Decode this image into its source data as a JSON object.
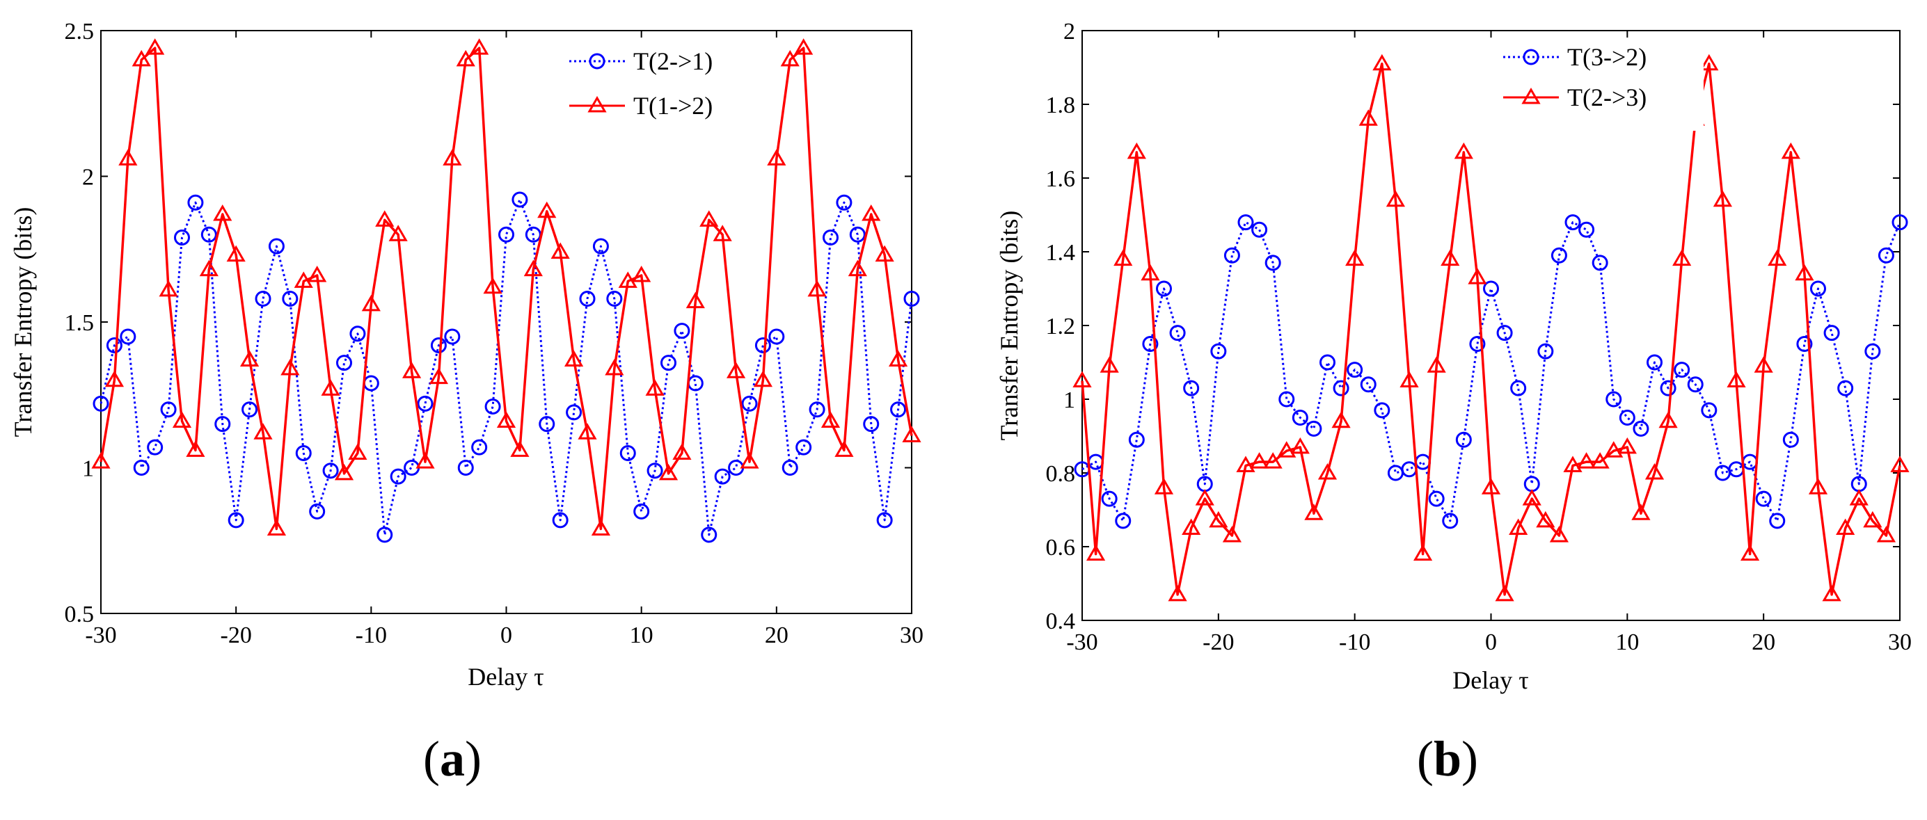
{
  "chart_data": [
    {
      "type": "line",
      "panel_label": {
        "open": "(",
        "letter": "a",
        "close": ")"
      },
      "title": "",
      "xlabel": "Delay τ",
      "ylabel": "Transfer Entropy (bits)",
      "xlim": [
        -30,
        30
      ],
      "ylim": [
        0.5,
        2.5
      ],
      "xticks": [
        -30,
        -20,
        -10,
        0,
        10,
        20,
        30
      ],
      "yticks": [
        0.5,
        1,
        1.5,
        2,
        2.5
      ],
      "xtick_labels": [
        "-30",
        "-20",
        "-10",
        "0",
        "10",
        "20",
        "30"
      ],
      "ytick_labels": [
        "0.5",
        "1",
        "1.5",
        "2",
        "2.5"
      ],
      "grid": false,
      "legend_position": "top-right",
      "series": [
        {
          "name": "T(2->1)",
          "color": "#0000ff",
          "line_style": "dotted",
          "marker": "circle",
          "x": [
            -30,
            -29,
            -28,
            -27,
            -26,
            -25,
            -24,
            -23,
            -22,
            -21,
            -20,
            -19,
            -18,
            -17,
            -16,
            -15,
            -14,
            -13,
            -12,
            -11,
            -10,
            -9,
            -8,
            -7,
            -6,
            -5,
            -4,
            -3,
            -2,
            -1,
            0,
            1,
            2,
            3,
            4,
            5,
            6,
            7,
            8,
            9,
            10,
            11,
            12,
            13,
            14,
            15,
            16,
            17,
            18,
            19,
            20,
            21,
            22,
            23,
            24,
            25,
            26,
            27,
            28,
            29,
            30
          ],
          "values": [
            1.22,
            1.42,
            1.45,
            1.0,
            1.07,
            1.2,
            1.79,
            1.91,
            1.8,
            1.15,
            0.82,
            1.2,
            1.58,
            1.76,
            1.58,
            1.05,
            0.85,
            0.99,
            1.36,
            1.46,
            1.29,
            0.77,
            0.97,
            1.0,
            1.22,
            1.42,
            1.45,
            1.0,
            1.07,
            1.21,
            1.8,
            1.92,
            1.8,
            1.15,
            0.82,
            1.19,
            1.58,
            1.76,
            1.58,
            1.05,
            0.85,
            0.99,
            1.36,
            1.47,
            1.29,
            0.77,
            0.97,
            1.0,
            1.22,
            1.42,
            1.45,
            1.0,
            1.07,
            1.2,
            1.79,
            1.91,
            1.8,
            1.15,
            0.82,
            1.2,
            1.58
          ]
        },
        {
          "name": "T(1->2)",
          "color": "#ff0000",
          "line_style": "solid",
          "marker": "triangle",
          "x": [
            -30,
            -29,
            -28,
            -27,
            -26,
            -25,
            -24,
            -23,
            -22,
            -21,
            -20,
            -19,
            -18,
            -17,
            -16,
            -15,
            -14,
            -13,
            -12,
            -11,
            -10,
            -9,
            -8,
            -7,
            -6,
            -5,
            -4,
            -3,
            -2,
            -1,
            0,
            1,
            2,
            3,
            4,
            5,
            6,
            7,
            8,
            9,
            10,
            11,
            12,
            13,
            14,
            15,
            16,
            17,
            18,
            19,
            20,
            21,
            22,
            23,
            24,
            25,
            26,
            27,
            28,
            29,
            30
          ],
          "values": [
            1.02,
            1.3,
            2.06,
            2.4,
            2.44,
            1.61,
            1.16,
            1.06,
            1.68,
            1.87,
            1.73,
            1.37,
            1.12,
            0.79,
            1.34,
            1.64,
            1.66,
            1.27,
            0.98,
            1.05,
            1.56,
            1.85,
            1.8,
            1.33,
            1.02,
            1.31,
            2.06,
            2.4,
            2.44,
            1.62,
            1.16,
            1.06,
            1.68,
            1.88,
            1.74,
            1.37,
            1.12,
            0.79,
            1.34,
            1.64,
            1.66,
            1.27,
            0.98,
            1.05,
            1.57,
            1.85,
            1.8,
            1.33,
            1.02,
            1.3,
            2.06,
            2.4,
            2.44,
            1.61,
            1.16,
            1.06,
            1.68,
            1.87,
            1.73,
            1.37,
            1.11
          ]
        }
      ]
    },
    {
      "type": "line",
      "panel_label": {
        "open": "(",
        "letter": "b",
        "close": ")"
      },
      "title": "",
      "xlabel": "Delay τ",
      "ylabel": "Transfer Entropy (bits)",
      "xlim": [
        -30,
        30
      ],
      "ylim": [
        0.4,
        2.0
      ],
      "xticks": [
        -30,
        -20,
        -10,
        0,
        10,
        20,
        30
      ],
      "yticks": [
        0.4,
        0.6,
        0.8,
        1.0,
        1.2,
        1.4,
        1.6,
        1.8,
        2.0
      ],
      "xtick_labels": [
        "-30",
        "-20",
        "-10",
        "0",
        "10",
        "20",
        "30"
      ],
      "ytick_labels": [
        "0.4",
        "0.6",
        "0.8",
        "1",
        "1.2",
        "1.4",
        "1.6",
        "1.8",
        "2"
      ],
      "grid": false,
      "legend_position": "top-left",
      "series": [
        {
          "name": "T(3->2)",
          "color": "#0000ff",
          "line_style": "dotted",
          "marker": "circle",
          "x": [
            -30,
            -29,
            -28,
            -27,
            -26,
            -25,
            -24,
            -23,
            -22,
            -21,
            -20,
            -19,
            -18,
            -17,
            -16,
            -15,
            -14,
            -13,
            -12,
            -11,
            -10,
            -9,
            -8,
            -7,
            -6,
            -5,
            -4,
            -3,
            -2,
            -1,
            0,
            1,
            2,
            3,
            4,
            5,
            6,
            7,
            8,
            9,
            10,
            11,
            12,
            13,
            14,
            15,
            16,
            17,
            18,
            19,
            20,
            21,
            22,
            23,
            24,
            25,
            26,
            27,
            28,
            29,
            30
          ],
          "values": [
            0.81,
            0.83,
            0.73,
            0.67,
            0.89,
            1.15,
            1.3,
            1.18,
            1.03,
            0.77,
            1.13,
            1.39,
            1.48,
            1.46,
            1.37,
            1.0,
            0.95,
            0.92,
            1.1,
            1.03,
            1.08,
            1.04,
            0.97,
            0.8,
            0.81,
            0.83,
            0.73,
            0.67,
            0.89,
            1.15,
            1.3,
            1.18,
            1.03,
            0.77,
            1.13,
            1.39,
            1.48,
            1.46,
            1.37,
            1.0,
            0.95,
            0.92,
            1.1,
            1.03,
            1.08,
            1.04,
            0.97,
            0.8,
            0.81,
            0.83,
            0.73,
            0.67,
            0.89,
            1.15,
            1.3,
            1.18,
            1.03,
            0.77,
            1.13,
            1.39,
            1.48
          ]
        },
        {
          "name": "T(2->3)",
          "color": "#ff0000",
          "line_style": "solid",
          "marker": "triangle",
          "x": [
            -30,
            -29,
            -28,
            -27,
            -26,
            -25,
            -24,
            -23,
            -22,
            -21,
            -20,
            -19,
            -18,
            -17,
            -16,
            -15,
            -14,
            -13,
            -12,
            -11,
            -10,
            -9,
            -8,
            -7,
            -6,
            -5,
            -4,
            -3,
            -2,
            -1,
            0,
            1,
            2,
            3,
            4,
            5,
            6,
            7,
            8,
            9,
            10,
            11,
            12,
            13,
            14,
            15,
            16,
            17,
            18,
            19,
            20,
            21,
            22,
            23,
            24,
            25,
            26,
            27,
            28,
            29,
            30
          ],
          "values": [
            1.05,
            0.58,
            1.09,
            1.38,
            1.67,
            1.34,
            0.76,
            0.47,
            0.65,
            0.73,
            0.67,
            0.63,
            0.82,
            0.83,
            0.83,
            0.86,
            0.87,
            0.69,
            0.8,
            0.94,
            1.38,
            1.76,
            1.91,
            1.54,
            1.05,
            0.58,
            1.09,
            1.38,
            1.67,
            1.33,
            0.76,
            0.47,
            0.65,
            0.73,
            0.67,
            0.63,
            0.82,
            0.83,
            0.83,
            0.86,
            0.87,
            0.69,
            0.8,
            0.94,
            1.38,
            1.76,
            1.91,
            1.54,
            1.05,
            0.58,
            1.09,
            1.38,
            1.67,
            1.34,
            0.76,
            0.47,
            0.65,
            0.73,
            0.67,
            0.63,
            0.82
          ]
        }
      ]
    }
  ]
}
